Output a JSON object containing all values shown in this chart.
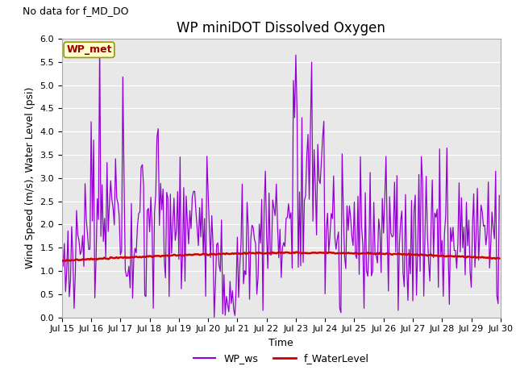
{
  "title": "WP miniDOT Dissolved Oxygen",
  "ylabel": "Wind Speed (m/s), Water Level (psi)",
  "xlabel": "Time",
  "no_data_text": "No data for f_MD_DO",
  "annotation_text": "WP_met",
  "ylim": [
    0.0,
    6.0
  ],
  "yticks": [
    0.0,
    0.5,
    1.0,
    1.5,
    2.0,
    2.5,
    3.0,
    3.5,
    4.0,
    4.5,
    5.0,
    5.5,
    6.0
  ],
  "ws_color": "#9400D3",
  "wl_color": "#CC0000",
  "bg_color": "#E8E8E8",
  "fig_bg": "#FFFFFF",
  "legend_ws": "WP_ws",
  "legend_wl": "f_WaterLevel",
  "title_fontsize": 12,
  "label_fontsize": 9,
  "tick_fontsize": 8,
  "nodata_fontsize": 9,
  "annot_fontsize": 9,
  "legend_fontsize": 9,
  "ws_linewidth": 0.9,
  "wl_linewidth": 1.8,
  "grid_color": "#FFFFFF",
  "grid_lw": 0.8,
  "annot_fc": "#FFFFCC",
  "annot_ec": "#999900",
  "annot_tc": "#990000"
}
